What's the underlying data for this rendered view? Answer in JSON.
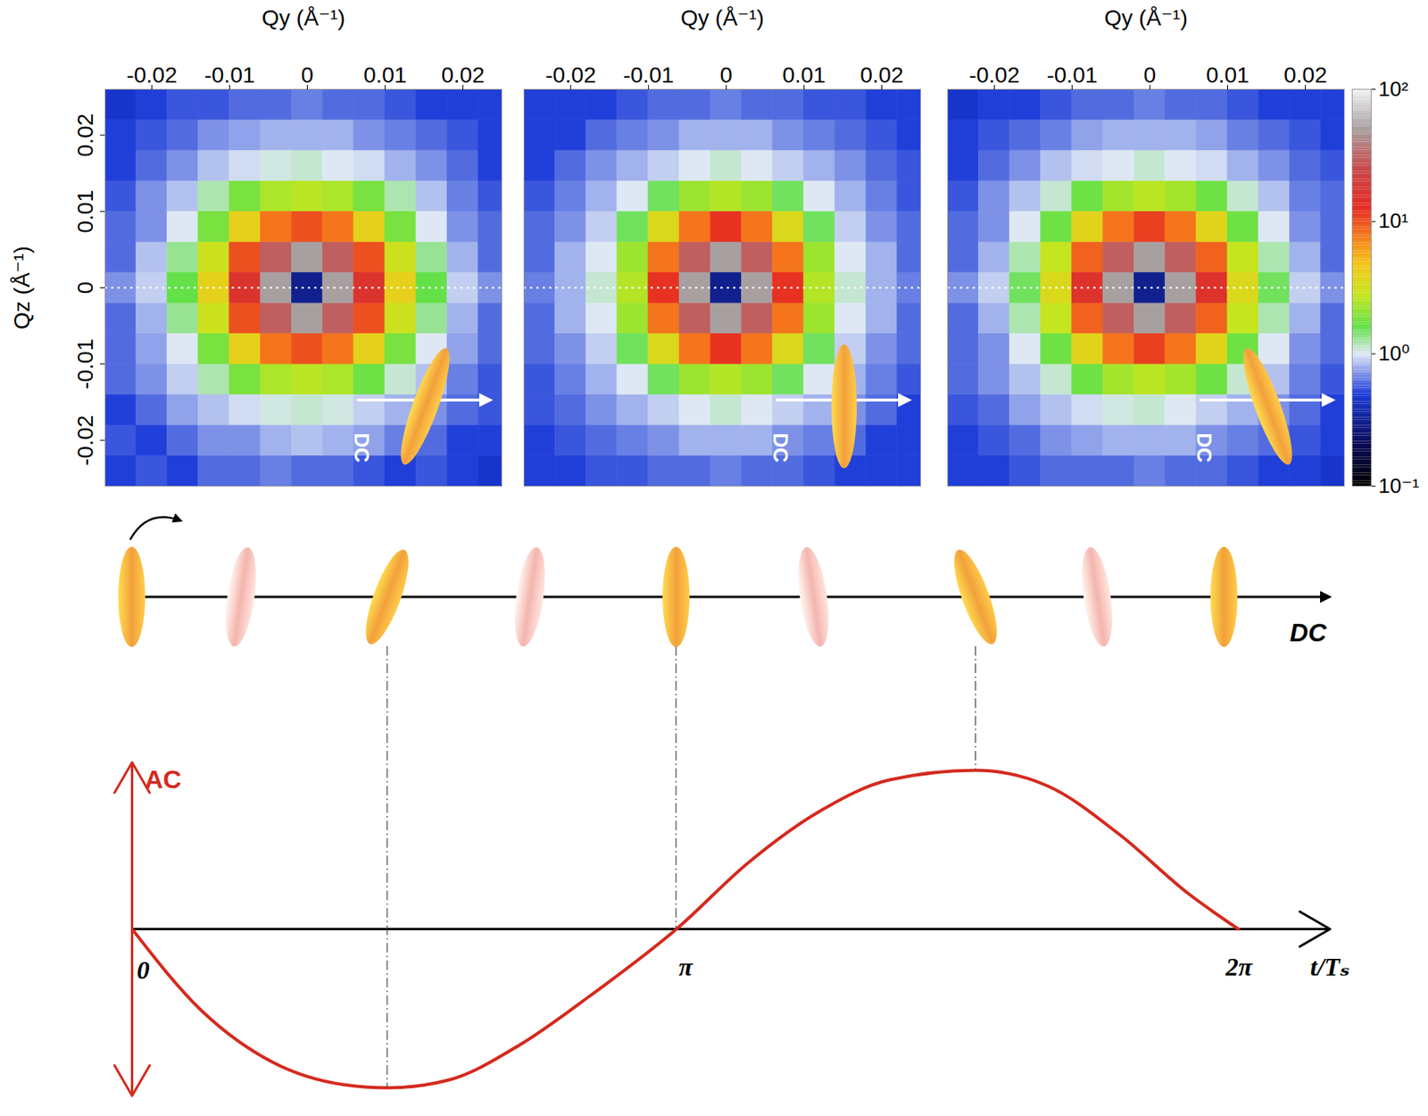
{
  "chart_data": [
    {
      "type": "heatmap",
      "x_label": "Qy (Å⁻¹)",
      "y_label": "Qz (Å⁻¹)",
      "xlim": [
        -0.026,
        0.025
      ],
      "ylim": [
        -0.026,
        0.026
      ],
      "xticks": [
        -0.02,
        -0.01,
        0,
        0.01,
        0.02
      ],
      "yticks": [
        -0.02,
        -0.01,
        0,
        0.01,
        0.02
      ],
      "hlines": [
        0
      ],
      "inset": {
        "text": "DC",
        "tilt": 20
      },
      "qy": [
        -0.024,
        -0.02,
        -0.016,
        -0.012,
        -0.008,
        -0.004,
        0,
        0.004,
        0.008,
        0.012,
        0.016,
        0.02,
        0.024
      ],
      "qz": [
        -0.024,
        -0.02,
        -0.016,
        -0.012,
        -0.008,
        -0.004,
        0,
        0.004,
        0.008,
        0.012,
        0.016,
        0.02,
        0.024
      ],
      "cells": [
        [
          0.5,
          0.55,
          0.5,
          0.6,
          0.6,
          0.65,
          0.6,
          0.6,
          0.55,
          0.5,
          0.55,
          0.5,
          0.45
        ],
        [
          0.55,
          0.5,
          0.6,
          0.7,
          0.7,
          0.8,
          0.85,
          0.8,
          0.75,
          0.65,
          0.6,
          0.5,
          0.5
        ],
        [
          0.5,
          0.6,
          0.75,
          0.85,
          0.95,
          1.05,
          1.1,
          1.05,
          0.9,
          0.8,
          0.7,
          0.6,
          0.55
        ],
        [
          0.6,
          0.7,
          0.9,
          1.2,
          1.8,
          2.4,
          2.6,
          2.4,
          1.7,
          1.1,
          0.85,
          0.65,
          0.55
        ],
        [
          0.6,
          0.75,
          1.0,
          1.8,
          4,
          8,
          10,
          8,
          4,
          1.8,
          1.0,
          0.75,
          0.6
        ],
        [
          0.6,
          0.8,
          1.3,
          3,
          10,
          30,
          50,
          30,
          10,
          3,
          1.3,
          0.8,
          0.6
        ],
        [
          0.7,
          0.9,
          1.6,
          4,
          16,
          50,
          0.3,
          50,
          16,
          4,
          1.6,
          0.9,
          0.7
        ],
        [
          0.6,
          0.85,
          1.3,
          3,
          10,
          30,
          50,
          30,
          10,
          3,
          1.3,
          0.8,
          0.6
        ],
        [
          0.6,
          0.7,
          1.0,
          1.8,
          4,
          8,
          10,
          8,
          4,
          1.8,
          1.0,
          0.7,
          0.6
        ],
        [
          0.55,
          0.7,
          0.85,
          1.2,
          1.8,
          2.4,
          2.6,
          2.4,
          1.8,
          1.2,
          0.85,
          0.65,
          0.55
        ],
        [
          0.5,
          0.6,
          0.7,
          0.85,
          0.95,
          1.05,
          1.1,
          1.0,
          0.95,
          0.8,
          0.7,
          0.6,
          0.5
        ],
        [
          0.5,
          0.55,
          0.6,
          0.7,
          0.75,
          0.8,
          0.8,
          0.8,
          0.7,
          0.65,
          0.6,
          0.55,
          0.5
        ],
        [
          0.45,
          0.5,
          0.55,
          0.55,
          0.6,
          0.6,
          0.65,
          0.6,
          0.6,
          0.55,
          0.5,
          0.5,
          0.5
        ]
      ]
    },
    {
      "type": "heatmap",
      "x_label": "Qy (Å⁻¹)",
      "tick_labels": "x",
      "xlim": [
        -0.026,
        0.025
      ],
      "ylim": [
        -0.026,
        0.026
      ],
      "xticks": [
        -0.02,
        -0.01,
        0,
        0.01,
        0.02
      ],
      "hlines": [
        0
      ],
      "inset": {
        "text": "DC",
        "tilt": 0
      },
      "qy": [
        -0.024,
        -0.02,
        -0.016,
        -0.012,
        -0.008,
        -0.004,
        0,
        0.004,
        0.008,
        0.012,
        0.016,
        0.02,
        0.024
      ],
      "qz": [
        -0.024,
        -0.02,
        -0.016,
        -0.012,
        -0.008,
        -0.004,
        0,
        0.004,
        0.008,
        0.012,
        0.016,
        0.02,
        0.024
      ],
      "cells": [
        [
          0.5,
          0.5,
          0.55,
          0.55,
          0.6,
          0.6,
          0.65,
          0.6,
          0.6,
          0.55,
          0.5,
          0.5,
          0.5
        ],
        [
          0.5,
          0.55,
          0.6,
          0.65,
          0.7,
          0.8,
          0.8,
          0.8,
          0.7,
          0.65,
          0.6,
          0.5,
          0.5
        ],
        [
          0.55,
          0.6,
          0.7,
          0.8,
          0.9,
          1.0,
          1.1,
          1.0,
          0.9,
          0.8,
          0.7,
          0.6,
          0.5
        ],
        [
          0.55,
          0.65,
          0.8,
          1.0,
          1.5,
          2.2,
          2.5,
          2.2,
          1.5,
          1.0,
          0.8,
          0.65,
          0.55
        ],
        [
          0.6,
          0.7,
          0.9,
          1.5,
          3.5,
          8,
          12,
          8,
          3.5,
          1.5,
          0.9,
          0.7,
          0.6
        ],
        [
          0.6,
          0.8,
          1.0,
          2.2,
          8,
          30,
          50,
          30,
          8,
          2.2,
          1.0,
          0.8,
          0.6
        ],
        [
          0.65,
          0.8,
          1.1,
          2.5,
          12,
          50,
          0.3,
          50,
          12,
          2.5,
          1.1,
          0.8,
          0.65
        ],
        [
          0.6,
          0.8,
          1.0,
          2.2,
          8,
          30,
          50,
          30,
          8,
          2.2,
          1.0,
          0.8,
          0.6
        ],
        [
          0.6,
          0.7,
          0.9,
          1.5,
          3.5,
          8,
          12,
          8,
          3.5,
          1.5,
          0.9,
          0.7,
          0.6
        ],
        [
          0.55,
          0.65,
          0.8,
          1.0,
          1.5,
          2.2,
          2.5,
          2.2,
          1.5,
          1.0,
          0.8,
          0.65,
          0.55
        ],
        [
          0.5,
          0.6,
          0.7,
          0.8,
          0.9,
          1.0,
          1.1,
          1.0,
          0.9,
          0.8,
          0.7,
          0.6,
          0.55
        ],
        [
          0.5,
          0.5,
          0.6,
          0.65,
          0.7,
          0.8,
          0.8,
          0.8,
          0.7,
          0.65,
          0.6,
          0.55,
          0.5
        ],
        [
          0.5,
          0.5,
          0.5,
          0.55,
          0.6,
          0.6,
          0.65,
          0.6,
          0.6,
          0.55,
          0.55,
          0.5,
          0.5
        ]
      ]
    },
    {
      "type": "heatmap",
      "x_label": "Qy (Å⁻¹)",
      "tick_labels": "x",
      "xlim": [
        -0.026,
        0.025
      ],
      "ylim": [
        -0.026,
        0.026
      ],
      "xticks": [
        -0.02,
        -0.01,
        0,
        0.01,
        0.02
      ],
      "hlines": [
        0
      ],
      "inset": {
        "text": "DC",
        "tilt": -20
      },
      "colorbar": {
        "range": [
          0.1,
          100
        ],
        "log": true,
        "ticks": [
          {
            "value": 0.1,
            "label": "10⁻¹"
          },
          {
            "value": 1,
            "label": "10⁰"
          },
          {
            "value": 10,
            "label": "10¹"
          },
          {
            "value": 100,
            "label": "10²"
          }
        ]
      },
      "qy": [
        -0.024,
        -0.02,
        -0.016,
        -0.012,
        -0.008,
        -0.004,
        0,
        0.004,
        0.008,
        0.012,
        0.016,
        0.02,
        0.024
      ],
      "qz": [
        -0.024,
        -0.02,
        -0.016,
        -0.012,
        -0.008,
        -0.004,
        0,
        0.004,
        0.008,
        0.012,
        0.016,
        0.02,
        0.024
      ],
      "cells": [
        [
          0.5,
          0.5,
          0.55,
          0.6,
          0.6,
          0.6,
          0.65,
          0.6,
          0.6,
          0.55,
          0.5,
          0.5,
          0.45
        ],
        [
          0.5,
          0.55,
          0.6,
          0.7,
          0.75,
          0.8,
          0.8,
          0.8,
          0.7,
          0.65,
          0.6,
          0.55,
          0.5
        ],
        [
          0.55,
          0.6,
          0.75,
          0.85,
          0.95,
          1.05,
          1.1,
          1.0,
          0.9,
          0.8,
          0.7,
          0.6,
          0.5
        ],
        [
          0.6,
          0.7,
          0.85,
          1.1,
          1.7,
          2.3,
          2.6,
          2.3,
          1.7,
          1.1,
          0.85,
          0.65,
          0.55
        ],
        [
          0.6,
          0.7,
          1.0,
          1.7,
          3.8,
          8,
          11,
          8,
          3.8,
          1.7,
          1.0,
          0.7,
          0.6
        ],
        [
          0.6,
          0.8,
          1.2,
          2.8,
          9,
          30,
          50,
          30,
          9,
          2.8,
          1.2,
          0.8,
          0.6
        ],
        [
          0.7,
          0.9,
          1.5,
          3.5,
          15,
          50,
          0.3,
          50,
          15,
          3.5,
          1.5,
          0.9,
          0.7
        ],
        [
          0.6,
          0.8,
          1.2,
          2.8,
          9,
          30,
          50,
          30,
          9,
          2.8,
          1.2,
          0.8,
          0.6
        ],
        [
          0.6,
          0.7,
          1.0,
          1.7,
          3.8,
          8,
          11,
          8,
          3.8,
          1.7,
          1.0,
          0.7,
          0.6
        ],
        [
          0.55,
          0.7,
          0.85,
          1.1,
          1.7,
          2.3,
          2.6,
          2.3,
          1.7,
          1.1,
          0.85,
          0.65,
          0.6
        ],
        [
          0.5,
          0.6,
          0.7,
          0.85,
          0.95,
          1.0,
          1.1,
          1.0,
          0.95,
          0.8,
          0.7,
          0.6,
          0.55
        ],
        [
          0.5,
          0.55,
          0.6,
          0.65,
          0.75,
          0.8,
          0.8,
          0.8,
          0.75,
          0.65,
          0.6,
          0.55,
          0.5
        ],
        [
          0.45,
          0.5,
          0.5,
          0.55,
          0.6,
          0.6,
          0.65,
          0.6,
          0.6,
          0.55,
          0.5,
          0.5,
          0.5
        ]
      ]
    },
    {
      "type": "orientation",
      "x_label": "DC",
      "xlim": [
        0,
        6.8
      ],
      "x": [
        0,
        0.62,
        1.45,
        2.26,
        3.09,
        3.87,
        4.79,
        5.48,
        6.2
      ],
      "tilt": [
        0,
        8,
        20,
        8,
        0,
        -8,
        -20,
        -8,
        0
      ],
      "colors": [
        "#f2a03a",
        "#f4b4ae",
        "#f2a03a",
        "#f4b4ae",
        "#f2a03a",
        "#f4b4ae",
        "#f2a03a",
        "#f4b4ae",
        "#f2a03a"
      ]
    },
    {
      "type": "line",
      "x_label": "t/Tₛ",
      "y_label": "AC",
      "color": "#d42a1e",
      "xlim": [
        0,
        6.8
      ],
      "ylim": [
        -1.05,
        1.05
      ],
      "xticks": [
        0,
        {
          "value": 3.1416,
          "label": "π"
        },
        {
          "value": 6.2832,
          "label": "2π"
        }
      ],
      "tick_labels": "x",
      "hlines": [
        0
      ],
      "guides": [
        1.45,
        3.09,
        4.79
      ],
      "x": [
        0,
        0.4,
        0.8,
        1.2,
        1.45,
        1.8,
        2.2,
        2.6,
        3.09,
        3.5,
        3.9,
        4.3,
        4.79,
        5.2,
        5.6,
        6.0,
        6.28
      ],
      "values": [
        0,
        -0.52,
        -0.84,
        -0.98,
        -1.0,
        -0.95,
        -0.73,
        -0.42,
        0,
        0.42,
        0.74,
        0.94,
        1.0,
        0.9,
        0.6,
        0.22,
        0
      ]
    }
  ]
}
